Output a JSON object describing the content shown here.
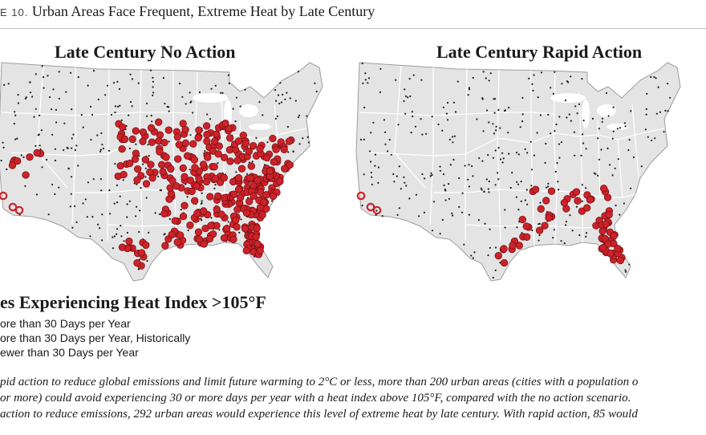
{
  "figure": {
    "number": "E 10.",
    "title": "Urban Areas Face Frequent, Extreme Heat by Late Century"
  },
  "maps": [
    {
      "title": "Late Century No Action"
    },
    {
      "title": "Late Century Rapid Action"
    }
  ],
  "legend": {
    "title": "es Experiencing Heat Index >105°F",
    "items": [
      {
        "label": "ore than 30 Days per Year",
        "marker": "filled-red-circle"
      },
      {
        "label": "ore than 30 Days per Year, Historically",
        "marker": "hollow-red-circle"
      },
      {
        "label": "ewer than 30 Days per Year",
        "marker": "small-black-dot"
      }
    ]
  },
  "caption": {
    "lines": [
      "pid action to reduce global emissions and limit future warming to 2°C or less, more than 200 urban areas (cities with a population o",
      "or more) could avoid experiencing 30 or more days per year with a heat index above 105°F, compared with the no action scenario.",
      "action to reduce emissions, 292 urban areas would experience this level of extreme heat by late century. With rapid action, 85 would"
    ]
  },
  "colors": {
    "state_fill": "#e4e4e4",
    "state_border": "#ffffff",
    "hot_city": "#cc2229",
    "hot_city_outline": "#6e0d10",
    "cool_city": "#1a1a1a"
  }
}
